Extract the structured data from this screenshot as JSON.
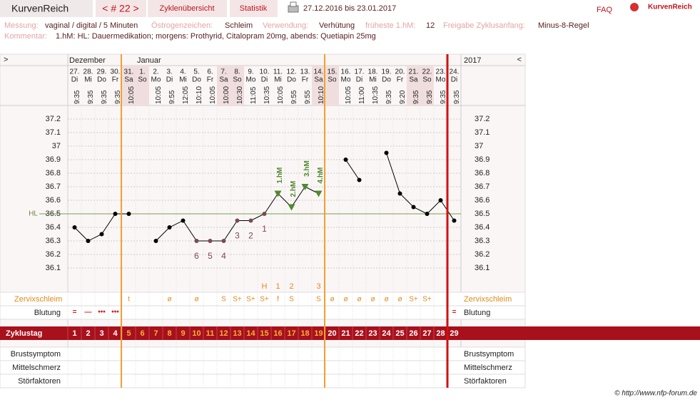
{
  "header": {
    "app_name": "KurvenReich",
    "cycle_nav": "< # 22 >",
    "tabs": [
      "Zyklenübersicht",
      "Statistik"
    ],
    "date_range": "27.12.2016 bis 23.01.2017",
    "faq": "FAQ",
    "logo": "KurvenReich"
  },
  "info": {
    "fields": [
      [
        "Messung:",
        "vaginal / digital / 5 Minuten"
      ],
      [
        "Östrogenzeichen:",
        "Schleim"
      ],
      [
        "Verwendung:",
        "Verhütung"
      ],
      [
        "früheste 1.hM:",
        12
      ],
      [
        "Freigabe Zyklusanfang:",
        "Minus-8-Regel"
      ]
    ],
    "comment": [
      "Kommentar:",
      "1.hM: HL: Dauermedikation; morgens: Prothyrid, Citalopram 20mg, abends: Quetiapin 25mg"
    ]
  },
  "table": {
    "expand_left": ">",
    "expand_right": "<",
    "year": "2017",
    "row_labels": {
      "mucus": "Zervixschleim",
      "bleeding": "Blutung",
      "cycle_day": "Zyklustag",
      "breast": "Brustsymptom",
      "mittelschmerz": "Mittelschmerz",
      "disturbance": "Störfaktoren"
    }
  },
  "footer": "© http://www.nfp-forum.de",
  "chart_data": {
    "type": "line",
    "months": [
      "Dezember",
      null,
      null,
      null,
      null,
      "Januar",
      null,
      null,
      null,
      null,
      null,
      null,
      null,
      null,
      null,
      null,
      null,
      null,
      null,
      null,
      null,
      null,
      null,
      null,
      null,
      null,
      null,
      null,
      null
    ],
    "days": [
      "27.",
      "28.",
      "29.",
      "30.",
      "31.",
      "1.",
      "2.",
      "3.",
      "4.",
      "5.",
      "6.",
      "7.",
      "8.",
      "9.",
      "10.",
      "11.",
      "12.",
      "13.",
      "14.",
      "15.",
      "16.",
      "17.",
      "18.",
      "19.",
      "20.",
      "21.",
      "22.",
      "23.",
      "24."
    ],
    "weekdays": [
      "Di",
      "Mi",
      "Do",
      "Fr",
      "Sa",
      "So",
      "Mo",
      "Di",
      "Mi",
      "Do",
      "Fr",
      "Sa",
      "So",
      "Mo",
      "Di",
      "Mi",
      "Do",
      "Fr",
      "Sa",
      "So",
      "Mo",
      "Di",
      "Mi",
      "Do",
      "Fr",
      "Sa",
      "So",
      "Mo",
      "Di"
    ],
    "times": [
      "9:35",
      "9:35",
      "9:35",
      "9:35",
      "10:05",
      null,
      "10:05",
      "9:55",
      "12:05",
      "10:10",
      "10:05",
      "10:00",
      "10:30",
      "11:05",
      "10:35",
      "10:05",
      "9:55",
      "9:55",
      "10:10",
      null,
      "10:05",
      "11:00",
      "10:35",
      "9:35",
      "9:20",
      "9:35",
      "9:35",
      "9:35",
      "9:35"
    ],
    "values": [
      36.4,
      36.3,
      36.35,
      36.5,
      36.5,
      null,
      36.3,
      36.4,
      36.45,
      36.3,
      36.3,
      36.3,
      36.45,
      36.45,
      36.5,
      36.65,
      36.55,
      36.7,
      36.65,
      null,
      36.9,
      36.75,
      null,
      36.95,
      36.65,
      36.55,
      36.5,
      36.6,
      36.45
    ],
    "point_labels": [
      null,
      null,
      null,
      null,
      null,
      null,
      null,
      null,
      null,
      "6",
      "5",
      "4",
      "3",
      "2",
      "1",
      "1.hM",
      "2.hM",
      "3.hM",
      "4.hM",
      null,
      null,
      null,
      null,
      null,
      null,
      null,
      null,
      null,
      null
    ],
    "peak_labels": [
      null,
      null,
      null,
      null,
      null,
      null,
      null,
      null,
      null,
      null,
      null,
      null,
      null,
      null,
      "H",
      "1",
      "2",
      null,
      "3",
      null,
      null,
      null,
      null,
      null,
      null,
      null,
      null,
      null,
      null
    ],
    "mucus": [
      null,
      null,
      null,
      null,
      "t",
      null,
      null,
      "ø",
      null,
      "ø",
      null,
      "S",
      "S+",
      "S+",
      "S+",
      "f",
      "S",
      null,
      "S",
      "ø",
      "ø",
      "ø",
      "ø",
      "ø",
      "ø",
      "S+",
      "S+",
      null,
      null
    ],
    "bleeding": [
      "=",
      "—",
      "•••",
      "•••",
      null,
      null,
      null,
      null,
      null,
      null,
      null,
      null,
      null,
      null,
      null,
      null,
      null,
      null,
      null,
      null,
      null,
      null,
      null,
      null,
      null,
      null,
      null,
      null,
      "="
    ],
    "cycle_days": [
      1,
      2,
      3,
      4,
      5,
      6,
      7,
      8,
      9,
      10,
      11,
      12,
      13,
      14,
      15,
      16,
      17,
      18,
      19,
      20,
      21,
      22,
      23,
      24,
      25,
      26,
      27,
      28,
      29
    ],
    "ylim": [
      36.0,
      37.3
    ],
    "yticks": [
      36.1,
      36.2,
      36.3,
      36.4,
      36.5,
      36.6,
      36.7,
      36.8,
      36.9,
      37,
      37.1,
      37.2
    ],
    "cover_line": 36.5,
    "cover_line_label": "HL",
    "line_color": "#000000",
    "high_color": "#4e8a2e",
    "count_color": "#7a4a5a",
    "grid": true
  }
}
